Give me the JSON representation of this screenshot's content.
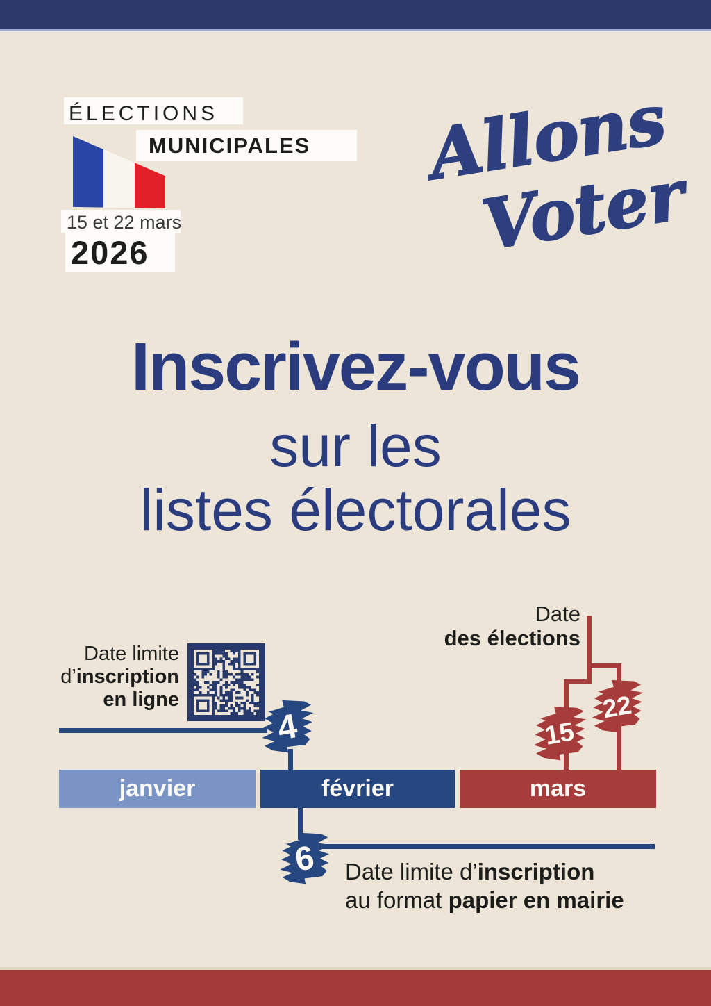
{
  "poster": {
    "header": {
      "title_line1": "ÉLECTIONS",
      "title_line2": "MUNICIPALES",
      "dates": "15 et 22 mars",
      "year": "2026"
    },
    "brand": {
      "word1": "Allons",
      "word2": "Voter !"
    },
    "headline": {
      "line1": "Inscrivez-vous",
      "line2": "sur les",
      "line3": "listes électorales"
    },
    "timeline": {
      "online_deadline": {
        "label_line1": "Date limite",
        "label_line2_light": "d’",
        "label_line2_bold": "inscription",
        "label_line3_bold": "en ligne",
        "day": "4"
      },
      "election_dates": {
        "label_line1": "Date",
        "label_line2_bold": "des élections",
        "day_round1": "15",
        "day_round2": "22"
      },
      "months": [
        {
          "label": "janvier",
          "color": "#7b94c6"
        },
        {
          "label": "février",
          "color": "#26467f"
        },
        {
          "label": "mars",
          "color": "#a73c3c"
        }
      ],
      "paper_deadline": {
        "day": "6",
        "label_line1_light": "Date limite d’",
        "label_line1_bold": "inscription",
        "label_line2_light": "au format ",
        "label_line2_bold": "papier en mairie"
      }
    },
    "colors": {
      "background": "#ece5d8",
      "top_bar": "#2c3a6b",
      "bottom_bar": "#a43939",
      "headline_blue": "#2b3c7e",
      "brand_blue": "#2e3f7f",
      "accent_blue": "#26467f",
      "light_blue": "#7b94c6",
      "accent_red": "#a73c3c",
      "text_black": "#1d1d1b",
      "flag_blue": "#2a46a5",
      "flag_red": "#e22028"
    }
  }
}
